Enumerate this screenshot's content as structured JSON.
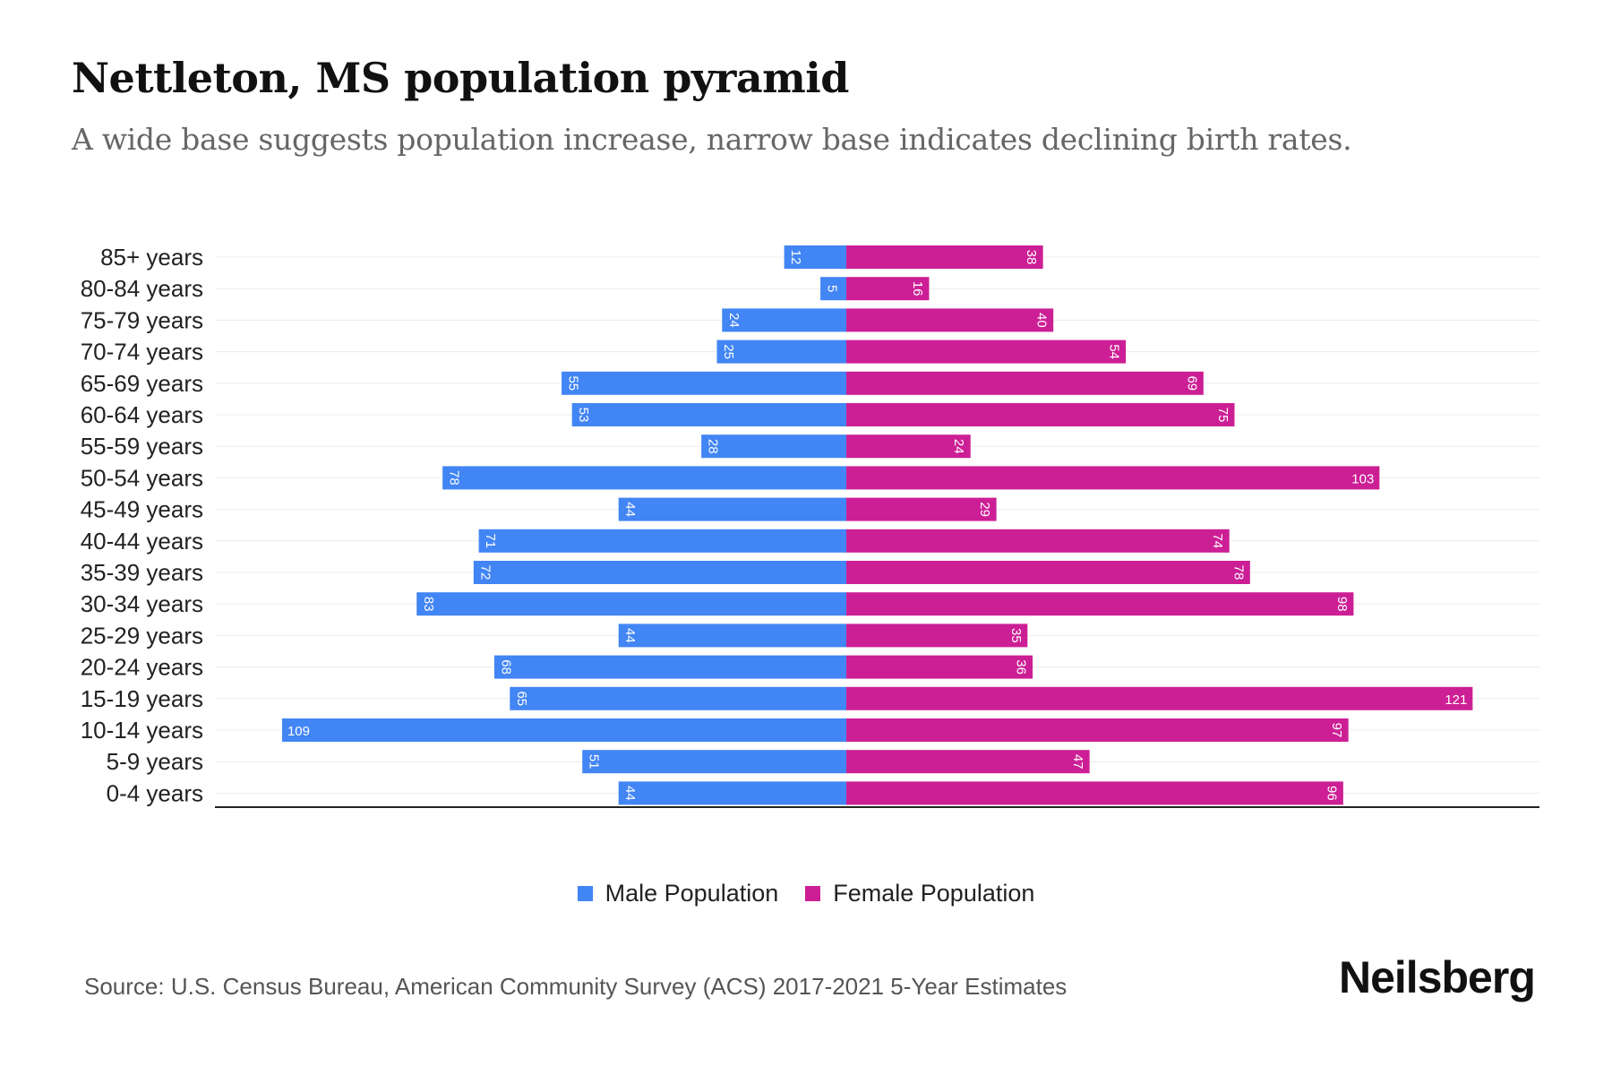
{
  "title": "Nettleton, MS population pyramid",
  "subtitle": "A wide base suggests population increase, narrow base indicates declining birth rates.",
  "source": "Source: U.S. Census Bureau, American Community Survey (ACS) 2017-2021 5-Year Estimates",
  "logo": "Neilsberg",
  "colors": {
    "male": "#4285f4",
    "female": "#cc1f95"
  },
  "chart_data": {
    "type": "bar",
    "orientation": "horizontal-pyramid",
    "title": "Nettleton, MS population pyramid",
    "categories": [
      "85+ years",
      "80-84 years",
      "75-79 years",
      "70-74 years",
      "65-69 years",
      "60-64 years",
      "55-59 years",
      "50-54 years",
      "45-49 years",
      "40-44 years",
      "35-39 years",
      "30-34 years",
      "25-29 years",
      "20-24 years",
      "15-19 years",
      "10-14 years",
      "5-9 years",
      "0-4 years"
    ],
    "series": [
      {
        "name": "Male Population",
        "values": [
          12,
          5,
          24,
          25,
          55,
          53,
          28,
          78,
          44,
          71,
          72,
          83,
          44,
          68,
          65,
          109,
          51,
          44
        ]
      },
      {
        "name": "Female Population",
        "values": [
          38,
          16,
          40,
          54,
          69,
          75,
          24,
          103,
          29,
          74,
          78,
          98,
          35,
          36,
          121,
          97,
          47,
          96
        ]
      }
    ],
    "grid": true,
    "legend": "bottom-center"
  }
}
